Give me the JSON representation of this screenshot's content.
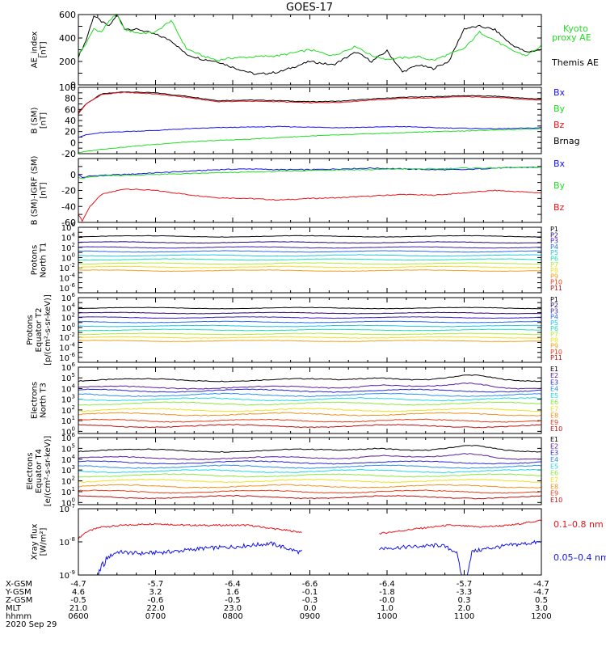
{
  "title": "GOES-17",
  "colors": {
    "black": "#000000",
    "red": "#e8141a",
    "green": "#22dd22",
    "blue": "#1414e8",
    "p": [
      "#000000",
      "#2a0a6e",
      "#3a1eb8",
      "#2a6cf0",
      "#24c4e8",
      "#24e0b8",
      "#b4e840",
      "#f0e020",
      "#f0a020",
      "#e84018",
      "#c01010"
    ],
    "e": [
      "#000000",
      "#5a1ea0",
      "#2a2ad8",
      "#2a90f0",
      "#24d8e8",
      "#8ee840",
      "#f0e020",
      "#f09020",
      "#e84018",
      "#c01010"
    ]
  },
  "axis_table": {
    "row_labels": [
      "X-GSM",
      "Y-GSM",
      "Z-GSM",
      "MLT",
      "hhmm",
      "2020 Sep 29"
    ],
    "columns": [
      [
        "-4.7",
        "4.6",
        "-0.5",
        "21.0",
        "0600"
      ],
      [
        "-5.7",
        "3.2",
        "-0.6",
        "22.0",
        "0700"
      ],
      [
        "-6.4",
        "1.6",
        "-0.5",
        "23.0",
        "0800"
      ],
      [
        "-6.6",
        "-0.1",
        "-0.3",
        "0.0",
        "0900"
      ],
      [
        "-6.4",
        "-1.8",
        "-0.0",
        "1.0",
        "1000"
      ],
      [
        "-5.7",
        "-3.3",
        "0.3",
        "2.0",
        "1100"
      ],
      [
        "-4.7",
        "-4.7",
        "0.5",
        "3.0",
        "1200"
      ]
    ]
  },
  "chart_data": [
    {
      "type": "line",
      "name": "ae",
      "ylabel": [
        "AE_index",
        "[nT]"
      ],
      "ylim": [
        0,
        600
      ],
      "ytick_values": [
        0,
        200,
        400,
        600
      ],
      "ytick_labels": [
        "0",
        "200",
        "400",
        "600"
      ],
      "legend": [
        {
          "text": "Kyoto",
          "color": "green"
        },
        {
          "text": "proxy AE",
          "color": "green"
        },
        {
          "text": "Themis AE",
          "color": "black"
        }
      ],
      "x": [
        6.0,
        6.1,
        6.2,
        6.3,
        6.4,
        6.5,
        6.6,
        6.8,
        7.0,
        7.2,
        7.4,
        7.6,
        7.8,
        8.0,
        8.3,
        8.6,
        9.0,
        9.3,
        9.6,
        9.8,
        10.0,
        10.2,
        10.4,
        10.6,
        10.8,
        11.0,
        11.2,
        11.4,
        11.6,
        11.8,
        12.0
      ],
      "series": [
        {
          "name": "Themis AE",
          "color": "black",
          "values": [
            240,
            380,
            590,
            540,
            500,
            600,
            480,
            470,
            430,
            380,
            260,
            220,
            200,
            150,
            90,
            110,
            200,
            170,
            280,
            200,
            290,
            110,
            170,
            140,
            200,
            480,
            500,
            470,
            350,
            280,
            300
          ]
        },
        {
          "name": "Kyoto proxy AE",
          "color": "green",
          "values": [
            260,
            350,
            480,
            450,
            550,
            600,
            470,
            440,
            450,
            550,
            310,
            250,
            210,
            230,
            240,
            250,
            300,
            250,
            330,
            250,
            220,
            230,
            240,
            210,
            260,
            310,
            450,
            380,
            300,
            250,
            330
          ]
        }
      ]
    },
    {
      "type": "line",
      "name": "b",
      "ylabel": [
        "B (SM)",
        "[nT]"
      ],
      "ylim": [
        -20,
        100
      ],
      "ytick_values": [
        -20,
        0,
        20,
        40,
        60,
        80,
        100
      ],
      "ytick_labels": [
        "-20",
        "0",
        "20",
        "40",
        "60",
        "80",
        "100"
      ],
      "legend": [
        {
          "text": "Bx",
          "color": "blue"
        },
        {
          "text": "By",
          "color": "green"
        },
        {
          "text": "Bz",
          "color": "red"
        },
        {
          "text": "Brnag",
          "color": "black"
        }
      ],
      "x": [
        6.0,
        6.1,
        6.3,
        6.6,
        7.0,
        7.4,
        7.8,
        8.2,
        8.6,
        9.0,
        9.4,
        9.8,
        10.2,
        10.6,
        11.0,
        11.4,
        11.8,
        12.0
      ],
      "series": [
        {
          "name": "Brnag",
          "color": "black",
          "values": [
            55,
            70,
            88,
            92,
            90,
            84,
            76,
            77,
            76,
            74,
            75,
            79,
            82,
            83,
            85,
            84,
            80,
            79
          ]
        },
        {
          "name": "Bz",
          "color": "red",
          "values": [
            52,
            70,
            87,
            91,
            88,
            82,
            74,
            75,
            74,
            72,
            73,
            77,
            80,
            81,
            83,
            82,
            78,
            77
          ]
        },
        {
          "name": "Bx",
          "color": "blue",
          "values": [
            10,
            14,
            18,
            20,
            22,
            25,
            27,
            28,
            29,
            28,
            27,
            28,
            29,
            27,
            26,
            25,
            26,
            27
          ]
        },
        {
          "name": "By",
          "color": "green",
          "values": [
            -18,
            -16,
            -12,
            -8,
            -3,
            1,
            4,
            6,
            9,
            12,
            14,
            16,
            18,
            20,
            21,
            23,
            24,
            25
          ]
        }
      ]
    },
    {
      "type": "line",
      "name": "db",
      "ylabel": [
        "B (SM)-IGRF (SM)",
        "[nT]"
      ],
      "ylim": [
        -60,
        20
      ],
      "ytick_values": [
        -60,
        -40,
        -20,
        0
      ],
      "ytick_labels": [
        "-60",
        "-40",
        "-20",
        "0"
      ],
      "legend": [
        {
          "text": "Bx",
          "color": "blue"
        },
        {
          "text": "By",
          "color": "green"
        },
        {
          "text": "Bz",
          "color": "red"
        }
      ],
      "x": [
        6.0,
        6.05,
        6.15,
        6.3,
        6.6,
        7.0,
        7.4,
        7.8,
        8.2,
        8.6,
        9.0,
        9.4,
        9.8,
        10.2,
        10.6,
        11.0,
        11.4,
        11.8,
        12.0
      ],
      "series": [
        {
          "name": "Bz",
          "color": "red",
          "values": [
            -50,
            -58,
            -40,
            -25,
            -18,
            -20,
            -25,
            -29,
            -30,
            -32,
            -30,
            -29,
            -27,
            -25,
            -26,
            -23,
            -20,
            -22,
            -23
          ]
        },
        {
          "name": "Bx",
          "color": "blue",
          "values": [
            0,
            -4,
            -2,
            -1,
            0,
            2,
            4,
            6,
            7,
            6,
            6,
            7,
            8,
            7,
            6,
            6,
            8,
            9,
            9
          ]
        },
        {
          "name": "By",
          "color": "green",
          "values": [
            -3,
            -5,
            -3,
            -2,
            -1,
            0,
            1,
            2,
            3,
            4,
            5,
            6,
            6,
            7,
            7,
            8,
            8,
            9,
            9
          ]
        }
      ]
    },
    {
      "type": "line",
      "name": "p1",
      "log": true,
      "ylabel": [
        "Protons",
        "North T1"
      ],
      "ylim_exp": [
        -7,
        6
      ],
      "ytick_exps": [
        -6,
        -4,
        -2,
        0,
        2,
        4,
        6
      ],
      "legend": [
        {
          "text": "P1",
          "c": 0
        },
        {
          "text": "P2",
          "c": 1
        },
        {
          "text": "P3",
          "c": 2
        },
        {
          "text": "P4",
          "c": 3
        },
        {
          "text": "P5",
          "c": 4
        },
        {
          "text": "P6",
          "c": 5
        },
        {
          "text": "P7",
          "c": 6
        },
        {
          "text": "P8",
          "c": 7
        },
        {
          "text": "P9",
          "c": 8
        },
        {
          "text": "P10",
          "c": 9
        },
        {
          "text": "P11",
          "c": 10
        }
      ],
      "levels_exp": [
        4.2,
        3.0,
        2.0,
        1.2,
        0.4,
        -0.4,
        -1.2,
        -1.9,
        -2.6,
        -7.2,
        -7.4
      ]
    },
    {
      "type": "line",
      "name": "p2",
      "log": true,
      "ylabel": [
        "Protons",
        "Equator T2",
        "[p/(cm²-s-sr-keV)]"
      ],
      "ylim_exp": [
        -7,
        6
      ],
      "ytick_exps": [
        -6,
        -4,
        -2,
        0,
        2,
        4,
        6
      ],
      "legend": [
        {
          "text": "P1",
          "c": 0
        },
        {
          "text": "P2",
          "c": 1
        },
        {
          "text": "P3",
          "c": 2
        },
        {
          "text": "P4",
          "c": 3
        },
        {
          "text": "P5",
          "c": 4
        },
        {
          "text": "P6",
          "c": 5
        },
        {
          "text": "P7",
          "c": 6
        },
        {
          "text": "P8",
          "c": 7
        },
        {
          "text": "P9",
          "c": 8
        },
        {
          "text": "P10",
          "c": 9
        },
        {
          "text": "P11",
          "c": 10
        }
      ],
      "levels_exp": [
        3.9,
        2.9,
        2.0,
        1.1,
        0.3,
        -0.5,
        -1.3,
        -2.0,
        -2.7,
        -7.2,
        -7.4
      ]
    },
    {
      "type": "line",
      "name": "e1",
      "log": true,
      "ylabel": [
        "Electrons",
        "North T3"
      ],
      "ylim_exp": [
        -0.2,
        6
      ],
      "ytick_exps": [
        0,
        1,
        2,
        3,
        4,
        5,
        6
      ],
      "legend": [
        {
          "text": "E1",
          "c": 0
        },
        {
          "text": "E2",
          "c": 1
        },
        {
          "text": "E3",
          "c": 2
        },
        {
          "text": "E4",
          "c": 3
        },
        {
          "text": "E5",
          "c": 4
        },
        {
          "text": "E6",
          "c": 5
        },
        {
          "text": "E7",
          "c": 6
        },
        {
          "text": "E8",
          "c": 7
        },
        {
          "text": "E9",
          "c": 8
        },
        {
          "text": "E10",
          "c": 9
        }
      ],
      "levels_exp": [
        4.8,
        4.1,
        3.8,
        3.4,
        3.0,
        2.6,
        2.0,
        1.6,
        1.0,
        0.5
      ]
    },
    {
      "type": "line",
      "name": "e2",
      "log": true,
      "ylabel": [
        "Electrons",
        "Equator T4",
        "[e/(cm²-s-sr-keV)]"
      ],
      "ylim_exp": [
        -0.2,
        6
      ],
      "ytick_exps": [
        0,
        1,
        2,
        3,
        4,
        5,
        6
      ],
      "legend": [
        {
          "text": "E1",
          "c": 0
        },
        {
          "text": "E2",
          "c": 1
        },
        {
          "text": "E3",
          "c": 2
        },
        {
          "text": "E4",
          "c": 3
        },
        {
          "text": "E5",
          "c": 4
        },
        {
          "text": "E6",
          "c": 5
        },
        {
          "text": "E7",
          "c": 6
        },
        {
          "text": "E8",
          "c": 7
        },
        {
          "text": "E9",
          "c": 8
        },
        {
          "text": "E10",
          "c": 9
        }
      ],
      "levels_exp": [
        4.8,
        4.1,
        3.7,
        3.3,
        2.9,
        2.5,
        2.0,
        1.5,
        1.0,
        0.5
      ]
    },
    {
      "type": "line",
      "name": "xray",
      "log": true,
      "ylabel": [
        "Xray flux",
        "[W/m²]"
      ],
      "ylim_exp": [
        -9,
        -7
      ],
      "ytick_exps": [
        -9,
        -8,
        -7
      ],
      "legend": [
        {
          "text": "0.1–0.8 nm",
          "color": "red"
        },
        {
          "text": "0.05–0.4 nm",
          "color": "blue"
        }
      ],
      "gap": [
        8.9,
        9.9
      ],
      "series": [
        {
          "name": "0.1–0.8 nm",
          "color": "red",
          "x": [
            6.0,
            6.1,
            6.3,
            6.6,
            7.0,
            7.4,
            7.8,
            8.2,
            8.85,
            9.9,
            10.4,
            10.8,
            11.2,
            11.6,
            12.0
          ],
          "values_exp": [
            -7.9,
            -7.7,
            -7.55,
            -7.5,
            -7.45,
            -7.5,
            -7.5,
            -7.5,
            -7.7,
            -7.75,
            -7.6,
            -7.5,
            -7.55,
            -7.5,
            -7.35
          ]
        },
        {
          "name": "0.05–0.4 nm",
          "color": "blue",
          "x": [
            6.0,
            6.1,
            6.2,
            6.3,
            6.5,
            6.8,
            7.2,
            7.6,
            8.0,
            8.5,
            8.85,
            9.9,
            10.3,
            10.7,
            10.9,
            11.0,
            11.1,
            11.3,
            11.6,
            12.0
          ],
          "values_exp": [
            -9.5,
            -8.9,
            -9.3,
            -8.6,
            -8.3,
            -8.35,
            -8.3,
            -8.2,
            -8.15,
            -8.05,
            -8.3,
            -8.2,
            -8.15,
            -8.1,
            -8.3,
            -9.4,
            -8.3,
            -8.2,
            -8.1,
            -8.0
          ]
        }
      ]
    }
  ]
}
